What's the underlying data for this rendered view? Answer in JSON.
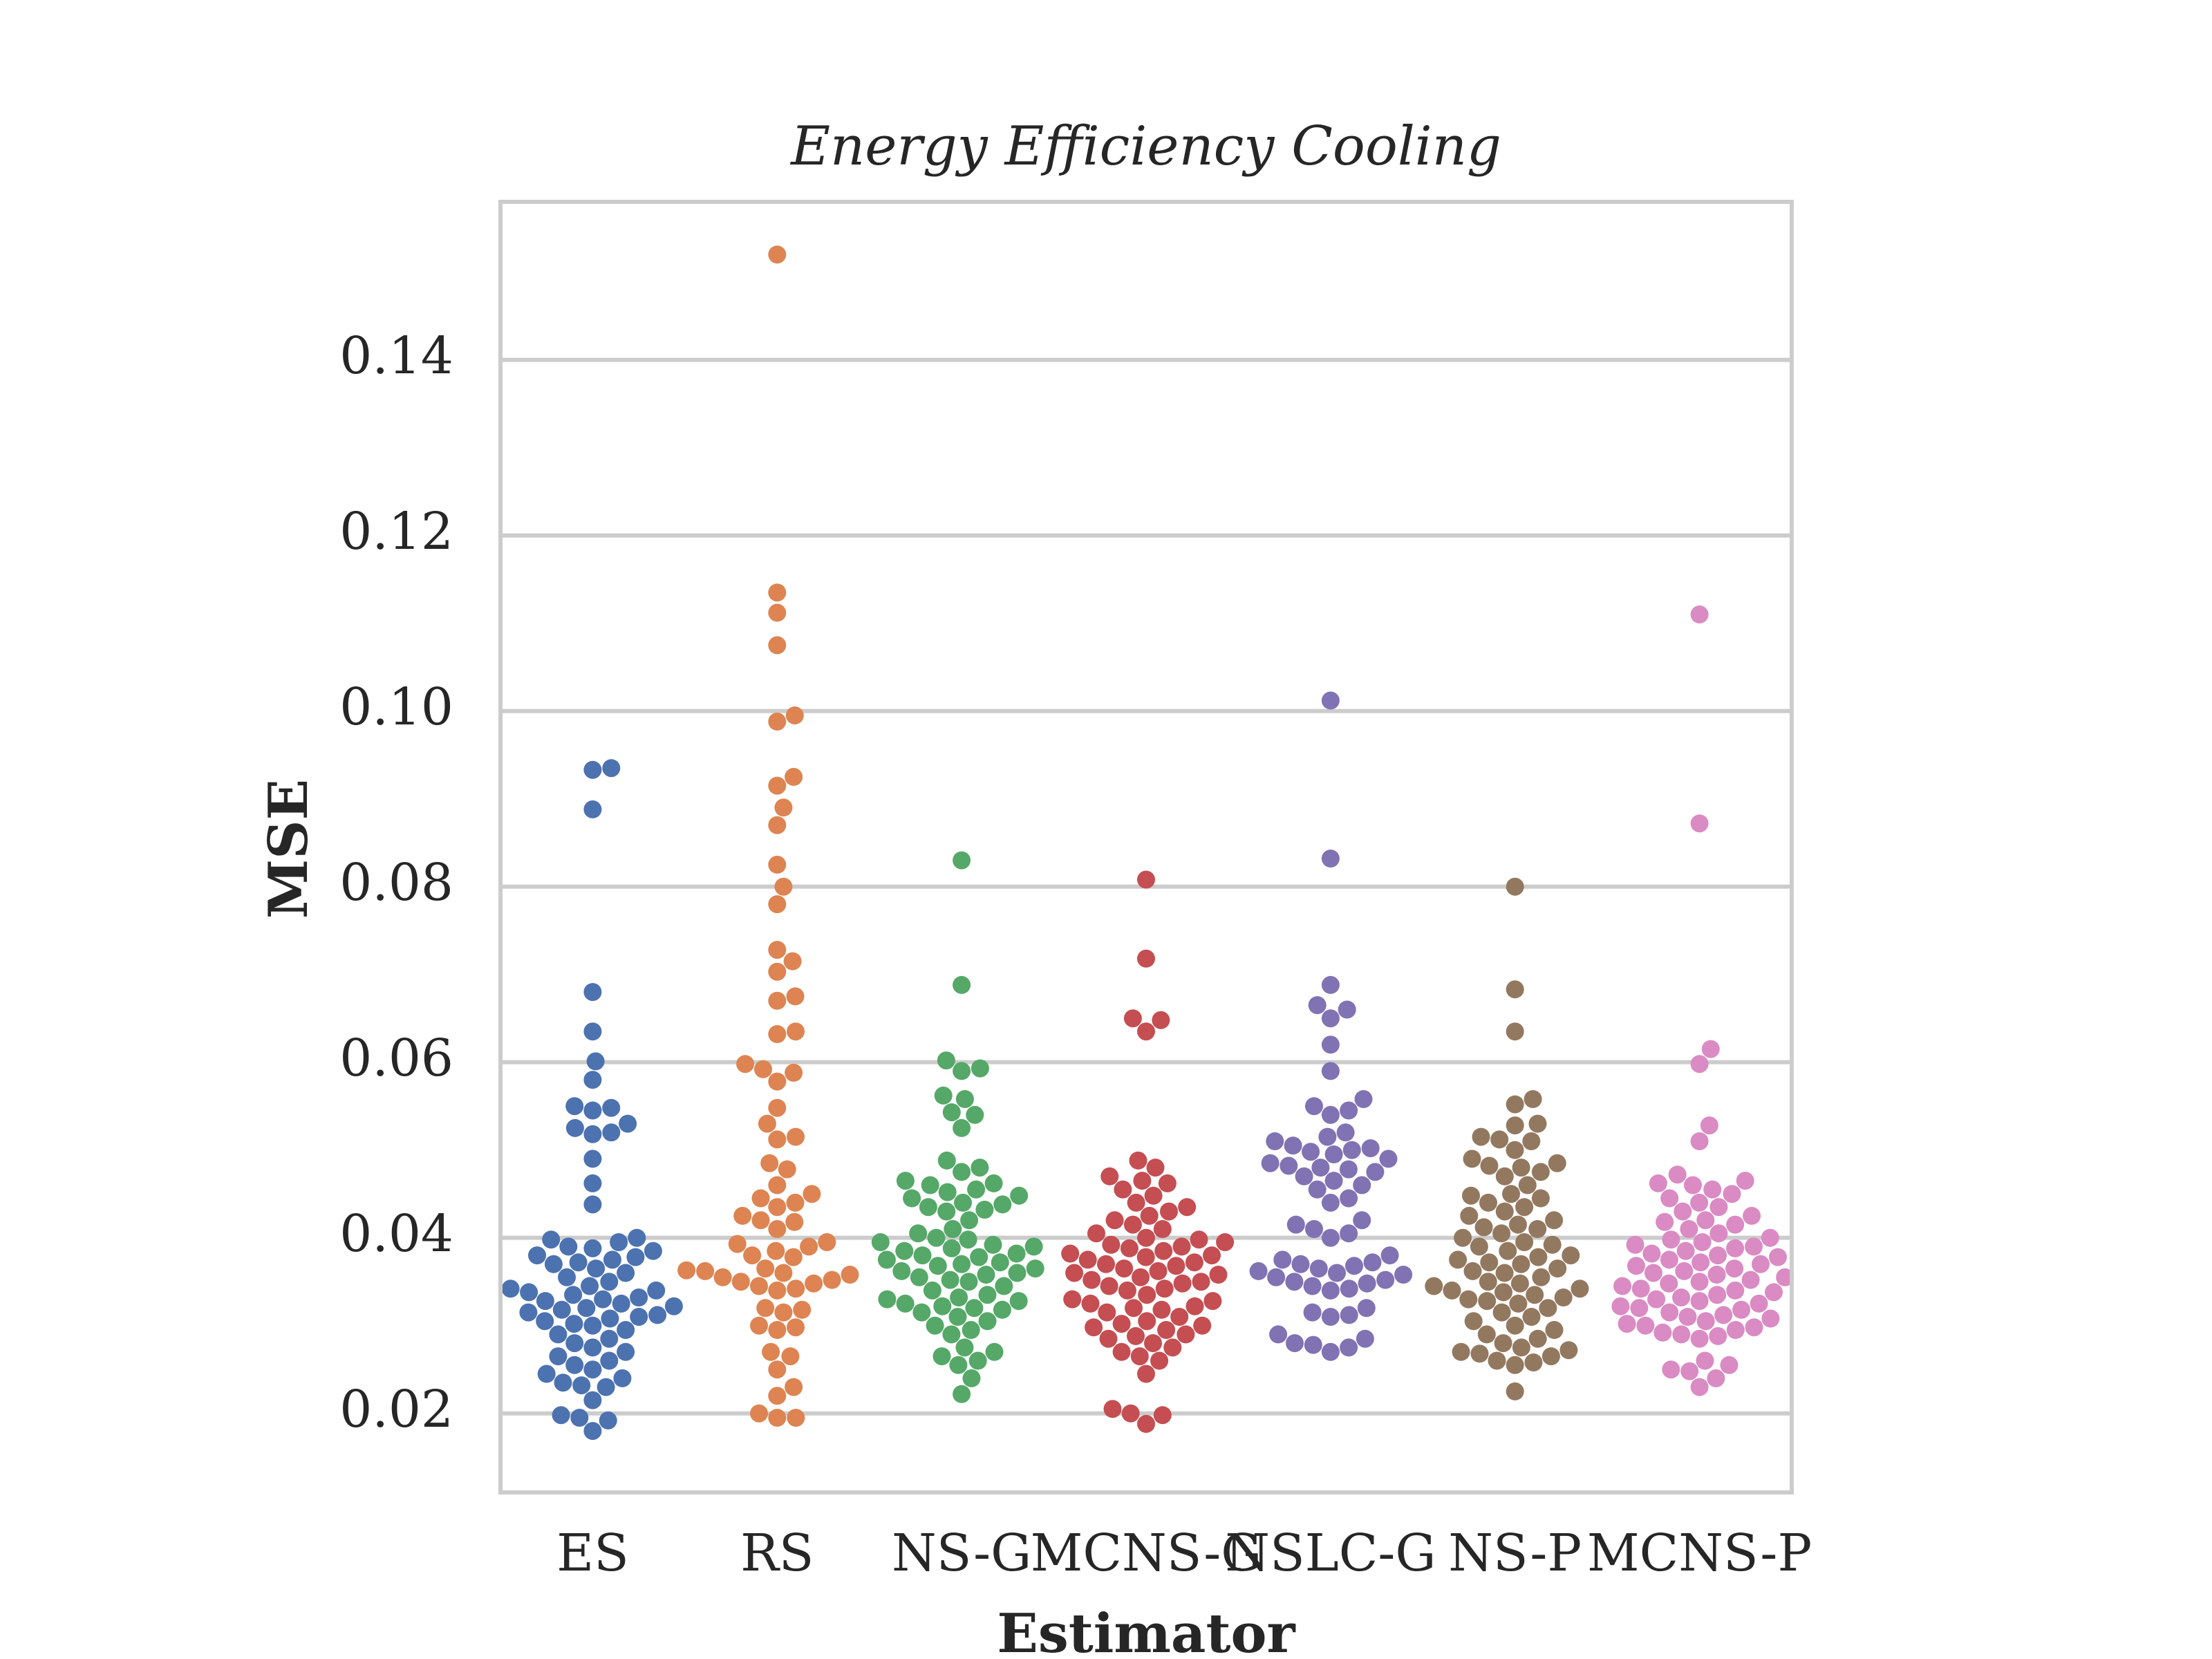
{
  "chart_data": {
    "type": "scatter",
    "style": "swarm",
    "title": "Energy Efficiency Cooling",
    "xlabel": "Estimator",
    "ylabel": "MSE",
    "categories": [
      "ES",
      "RS",
      "NS-G",
      "MCNS-G",
      "NSLC-G",
      "NS-P",
      "MCNS-P"
    ],
    "ylim": [
      0.011,
      0.158
    ],
    "yticks": [
      {
        "value": 0.02,
        "label": "0.02"
      },
      {
        "value": 0.04,
        "label": "0.04"
      },
      {
        "value": 0.06,
        "label": "0.06"
      },
      {
        "value": 0.08,
        "label": "0.08"
      },
      {
        "value": 0.1,
        "label": "0.10"
      },
      {
        "value": 0.12,
        "label": "0.12"
      },
      {
        "value": 0.14,
        "label": "0.14"
      }
    ],
    "grid": true,
    "legend": "none",
    "colors": [
      "#4c72b0",
      "#dd8452",
      "#55a868",
      "#c44e52",
      "#8172b3",
      "#937860",
      "#da8bc3"
    ],
    "series": [
      {
        "category": "ES",
        "values": [
          0.0935,
          0.0933,
          0.0888,
          0.068,
          0.0635,
          0.0601,
          0.058,
          0.055,
          0.0548,
          0.0545,
          0.053,
          0.0525,
          0.052,
          0.0518,
          0.049,
          0.0462,
          0.0438,
          0.04,
          0.0398,
          0.0395,
          0.039,
          0.0388,
          0.0385,
          0.038,
          0.0378,
          0.0375,
          0.0372,
          0.037,
          0.0365,
          0.036,
          0.0355,
          0.035,
          0.0345,
          0.0342,
          0.034,
          0.0338,
          0.0335,
          0.0332,
          0.033,
          0.0328,
          0.0325,
          0.0322,
          0.032,
          0.0318,
          0.0315,
          0.0312,
          0.031,
          0.0308,
          0.0305,
          0.0302,
          0.03,
          0.0295,
          0.029,
          0.0285,
          0.028,
          0.0275,
          0.027,
          0.0265,
          0.026,
          0.0255,
          0.025,
          0.0245,
          0.024,
          0.0235,
          0.0232,
          0.023,
          0.0215,
          0.0198,
          0.0195,
          0.0192,
          0.018
        ]
      },
      {
        "category": "RS",
        "values": [
          0.152,
          0.1135,
          0.1112,
          0.1075,
          0.0995,
          0.0988,
          0.0925,
          0.0915,
          0.089,
          0.087,
          0.0825,
          0.08,
          0.078,
          0.0728,
          0.0715,
          0.0703,
          0.0675,
          0.067,
          0.0635,
          0.0632,
          0.0598,
          0.0592,
          0.0588,
          0.0578,
          0.0548,
          0.053,
          0.0515,
          0.0512,
          0.0485,
          0.0478,
          0.046,
          0.045,
          0.0445,
          0.044,
          0.0435,
          0.0425,
          0.042,
          0.0418,
          0.041,
          0.0395,
          0.0393,
          0.039,
          0.0385,
          0.038,
          0.0378,
          0.0365,
          0.0363,
          0.0362,
          0.036,
          0.0358,
          0.0355,
          0.0352,
          0.035,
          0.0348,
          0.0345,
          0.0342,
          0.034,
          0.032,
          0.0318,
          0.0315,
          0.03,
          0.0298,
          0.0295,
          0.027,
          0.0265,
          0.025,
          0.023,
          0.022,
          0.02,
          0.0195,
          0.0195
        ]
      },
      {
        "category": "NS-G",
        "values": [
          0.083,
          0.0688,
          0.0602,
          0.0593,
          0.059,
          0.0562,
          0.0558,
          0.0543,
          0.054,
          0.0525,
          0.0488,
          0.048,
          0.0475,
          0.0465,
          0.0462,
          0.046,
          0.0455,
          0.0452,
          0.0448,
          0.0445,
          0.044,
          0.0438,
          0.0435,
          0.0432,
          0.043,
          0.042,
          0.041,
          0.0405,
          0.04,
          0.0398,
          0.0395,
          0.0392,
          0.039,
          0.0388,
          0.0385,
          0.0382,
          0.038,
          0.0378,
          0.0375,
          0.0372,
          0.037,
          0.0368,
          0.0365,
          0.0362,
          0.036,
          0.0358,
          0.0355,
          0.0352,
          0.035,
          0.0345,
          0.034,
          0.0335,
          0.0332,
          0.033,
          0.0328,
          0.0325,
          0.0322,
          0.032,
          0.0318,
          0.0315,
          0.031,
          0.0305,
          0.03,
          0.0295,
          0.029,
          0.0275,
          0.027,
          0.0265,
          0.026,
          0.0255,
          0.024,
          0.0222
        ]
      },
      {
        "category": "MCNS-G",
        "values": [
          0.0808,
          0.0718,
          0.065,
          0.0648,
          0.0635,
          0.0488,
          0.048,
          0.047,
          0.0465,
          0.0462,
          0.0455,
          0.0448,
          0.044,
          0.0435,
          0.043,
          0.0425,
          0.042,
          0.0415,
          0.041,
          0.0405,
          0.04,
          0.0398,
          0.0395,
          0.0392,
          0.039,
          0.0388,
          0.0385,
          0.0382,
          0.038,
          0.0378,
          0.0375,
          0.0372,
          0.037,
          0.0368,
          0.0365,
          0.0362,
          0.036,
          0.0358,
          0.0355,
          0.0352,
          0.035,
          0.0348,
          0.0345,
          0.0342,
          0.034,
          0.0335,
          0.033,
          0.0328,
          0.0325,
          0.0322,
          0.032,
          0.0318,
          0.0315,
          0.031,
          0.0305,
          0.0302,
          0.03,
          0.0298,
          0.0295,
          0.029,
          0.0288,
          0.0285,
          0.028,
          0.0275,
          0.027,
          0.0265,
          0.026,
          0.0245,
          0.0205,
          0.02,
          0.0198,
          0.0188
        ]
      },
      {
        "category": "NSLC-G",
        "values": [
          0.1012,
          0.0832,
          0.0688,
          0.0665,
          0.066,
          0.065,
          0.062,
          0.059,
          0.0558,
          0.055,
          0.0545,
          0.054,
          0.052,
          0.0515,
          0.051,
          0.0505,
          0.0502,
          0.05,
          0.0498,
          0.0495,
          0.049,
          0.0485,
          0.0482,
          0.048,
          0.0478,
          0.0475,
          0.047,
          0.0465,
          0.046,
          0.0455,
          0.0445,
          0.044,
          0.042,
          0.0415,
          0.041,
          0.0405,
          0.04,
          0.038,
          0.0375,
          0.0372,
          0.037,
          0.0368,
          0.0365,
          0.0362,
          0.036,
          0.0358,
          0.0355,
          0.0352,
          0.035,
          0.0348,
          0.0345,
          0.0342,
          0.034,
          0.032,
          0.0315,
          0.0312,
          0.031,
          0.029,
          0.0285,
          0.028,
          0.0278,
          0.0275,
          0.027
        ]
      },
      {
        "category": "NS-P",
        "values": [
          0.08,
          0.0683,
          0.0635,
          0.0558,
          0.0552,
          0.053,
          0.0528,
          0.0515,
          0.0512,
          0.051,
          0.05,
          0.049,
          0.0485,
          0.0482,
          0.048,
          0.0475,
          0.047,
          0.046,
          0.045,
          0.0448,
          0.0445,
          0.044,
          0.0435,
          0.043,
          0.0425,
          0.042,
          0.0415,
          0.0412,
          0.041,
          0.0405,
          0.04,
          0.0395,
          0.0392,
          0.039,
          0.0385,
          0.038,
          0.0378,
          0.0375,
          0.0372,
          0.037,
          0.0365,
          0.0362,
          0.036,
          0.0355,
          0.035,
          0.0348,
          0.0345,
          0.0342,
          0.034,
          0.0338,
          0.0335,
          0.0332,
          0.033,
          0.0328,
          0.0325,
          0.032,
          0.0315,
          0.031,
          0.0305,
          0.03,
          0.0295,
          0.029,
          0.0285,
          0.028,
          0.0275,
          0.0272,
          0.027,
          0.0268,
          0.0265,
          0.026,
          0.0258,
          0.0255,
          0.0225
        ]
      },
      {
        "category": "MCNS-P",
        "values": [
          0.111,
          0.0872,
          0.0615,
          0.0598,
          0.0528,
          0.051,
          0.0472,
          0.0465,
          0.0462,
          0.046,
          0.0455,
          0.045,
          0.0445,
          0.044,
          0.0435,
          0.043,
          0.0425,
          0.042,
          0.0418,
          0.0415,
          0.041,
          0.0405,
          0.04,
          0.0398,
          0.0395,
          0.0392,
          0.039,
          0.0388,
          0.0385,
          0.0382,
          0.038,
          0.0378,
          0.0375,
          0.0372,
          0.037,
          0.0368,
          0.0365,
          0.0362,
          0.036,
          0.0358,
          0.0355,
          0.0352,
          0.035,
          0.0348,
          0.0345,
          0.0342,
          0.034,
          0.0338,
          0.0335,
          0.0332,
          0.033,
          0.0328,
          0.0325,
          0.0322,
          0.032,
          0.0318,
          0.0315,
          0.0312,
          0.031,
          0.0308,
          0.0305,
          0.0302,
          0.03,
          0.0298,
          0.0295,
          0.0292,
          0.029,
          0.0288,
          0.0285,
          0.026,
          0.0255,
          0.025,
          0.0248,
          0.024,
          0.023
        ]
      }
    ]
  }
}
